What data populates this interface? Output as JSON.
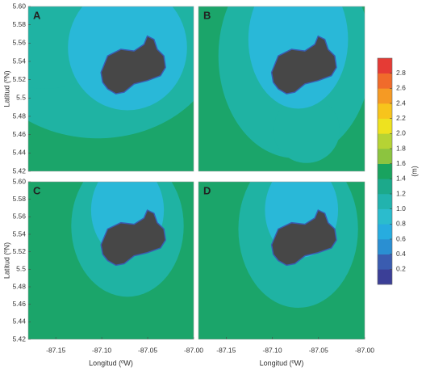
{
  "chart_data": [
    {
      "type": "contour",
      "label": "A",
      "ylabel": "Latitud (ºN)",
      "xlim": [
        -87.18,
        -87.0
      ],
      "ylim": [
        5.42,
        5.6
      ],
      "yticks": [
        5.42,
        5.44,
        5.46,
        5.48,
        5.5,
        5.52,
        5.54,
        5.56,
        5.58,
        {
          "value": 5.6,
          "label": "5.60"
        }
      ]
    },
    {
      "type": "contour",
      "label": "B",
      "xlim": [
        -87.18,
        -87.0
      ],
      "ylim": [
        5.42,
        5.6
      ]
    },
    {
      "type": "contour",
      "label": "C",
      "ylabel": "Latitud (ºN)",
      "xlabel": "Longitud (ºW)",
      "xlim": [
        -87.18,
        -87.0
      ],
      "ylim": [
        5.42,
        5.6
      ],
      "yticks": [
        5.42,
        5.44,
        5.46,
        5.48,
        5.5,
        5.52,
        5.54,
        5.56,
        5.58,
        {
          "value": 5.6,
          "label": "5.60"
        }
      ],
      "xticks": [
        -87.15,
        {
          "value": -87.1,
          "label": "-87.10"
        },
        -87.05,
        {
          "value": -87.0,
          "label": "-87.00"
        }
      ]
    },
    {
      "type": "contour",
      "label": "D",
      "xlabel": "Longitud (ºW)",
      "xlim": [
        -87.18,
        -87.0
      ],
      "ylim": [
        5.42,
        5.6
      ],
      "xticks": [
        -87.15,
        {
          "value": -87.1,
          "label": "-87.10"
        },
        -87.05,
        {
          "value": -87.0,
          "label": "-87.00"
        }
      ]
    }
  ],
  "colorbar": {
    "label": "(m)",
    "lim": [
      0,
      3
    ],
    "ticks": [
      0.2,
      0.4,
      0.6,
      0.8,
      {
        "value": 1.0,
        "label": "1.0"
      },
      1.2,
      1.4,
      1.6,
      1.8,
      {
        "value": 2.0,
        "label": "2.0"
      },
      2.2,
      2.4,
      2.6,
      2.8
    ],
    "colors": [
      "#3b3f97",
      "#3a5cb0",
      "#2a8fd2",
      "#27acdf",
      "#2bbccd",
      "#22b3ae",
      "#1ca98b",
      "#19a35f",
      "#8cc43f",
      "#b6d334",
      "#eee21f",
      "#f7c41c",
      "#f59a24",
      "#f06b2b",
      "#e53b35"
    ]
  }
}
